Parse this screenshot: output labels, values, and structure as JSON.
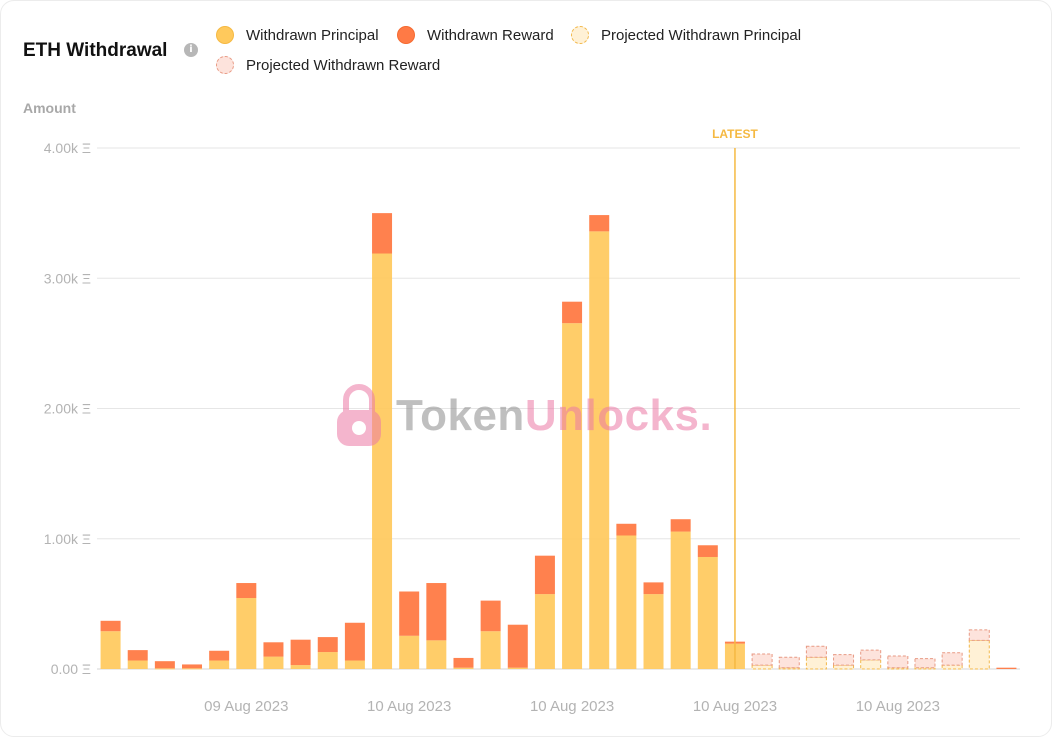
{
  "header": {
    "title": "ETH Withdrawal",
    "info_icon": "info-icon",
    "y_axis_title": "Amount"
  },
  "legend": [
    {
      "label": "Withdrawn Principal",
      "color": "#ffc95c"
    },
    {
      "label": "Withdrawn Reward",
      "color": "#ff7a45"
    },
    {
      "label": "Projected Withdrawn Principal",
      "color": "#fff1d6"
    },
    {
      "label": "Projected Withdrawn Reward",
      "color": "#fde3dc"
    }
  ],
  "watermark": {
    "part1": "Token",
    "part2": "Unlocks",
    "dot": "."
  },
  "chart_data": {
    "type": "bar",
    "stacked": true,
    "ylim": [
      0,
      4000
    ],
    "yticks": [
      0,
      1000,
      2000,
      3000,
      4000
    ],
    "ytick_labels": [
      "0.00 Ξ",
      "1.00k Ξ",
      "2.00k Ξ",
      "3.00k Ξ",
      "4.00k Ξ"
    ],
    "xtick_labels": [
      {
        "index": 5,
        "label": "09 Aug 2023"
      },
      {
        "index": 11,
        "label": "10 Aug 2023"
      },
      {
        "index": 17,
        "label": "10 Aug 2023"
      },
      {
        "index": 23,
        "label": "10 Aug 2023"
      },
      {
        "index": 29,
        "label": "10 Aug 2023"
      }
    ],
    "latest_index": 23,
    "latest_label": "LATEST",
    "grid": true,
    "legend_position": "top",
    "series": [
      {
        "name": "Withdrawn Principal",
        "color": "#ffc95c",
        "values": [
          290,
          65,
          5,
          5,
          65,
          545,
          95,
          30,
          130,
          65,
          3190,
          255,
          220,
          10,
          290,
          10,
          575,
          2655,
          3360,
          1025,
          575,
          1055,
          860,
          195,
          0,
          0,
          0,
          0,
          0,
          0,
          0,
          0,
          0,
          0
        ]
      },
      {
        "name": "Withdrawn Reward",
        "color": "#ff7a45",
        "values": [
          80,
          80,
          55,
          30,
          75,
          115,
          110,
          195,
          115,
          290,
          310,
          340,
          440,
          75,
          235,
          330,
          295,
          165,
          125,
          90,
          90,
          95,
          90,
          15,
          0,
          0,
          0,
          0,
          0,
          0,
          0,
          0,
          0,
          10
        ]
      },
      {
        "name": "Projected Withdrawn Principal",
        "color": "#fff1d6",
        "values": [
          0,
          0,
          0,
          0,
          0,
          0,
          0,
          0,
          0,
          0,
          0,
          0,
          0,
          0,
          0,
          0,
          0,
          0,
          0,
          0,
          0,
          0,
          0,
          0,
          30,
          10,
          90,
          30,
          70,
          10,
          10,
          30,
          220,
          0
        ]
      },
      {
        "name": "Projected Withdrawn Reward",
        "color": "#fde3dc",
        "values": [
          0,
          0,
          0,
          0,
          0,
          0,
          0,
          0,
          0,
          0,
          0,
          0,
          0,
          0,
          0,
          0,
          0,
          0,
          0,
          0,
          0,
          0,
          0,
          0,
          85,
          80,
          85,
          80,
          75,
          90,
          70,
          95,
          80,
          0
        ]
      }
    ]
  }
}
